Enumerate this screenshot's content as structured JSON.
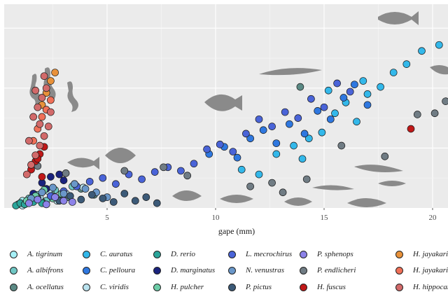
{
  "chart_data": {
    "type": "scatter",
    "title": "",
    "xlabel": "gape (mm)",
    "ylabel": "",
    "xlim": [
      0,
      21
    ],
    "ylim": [
      0,
      17
    ],
    "x_ticks": [
      5,
      10,
      15,
      20
    ],
    "grid": true,
    "background": "#ebebeb",
    "legend_position": "bottom",
    "series": [
      {
        "name": "A. tigrinum",
        "color": "#a6f0f7",
        "x": [
          0.9,
          1.1,
          1.3,
          1.6,
          2.1,
          2.5,
          2.9
        ],
        "y": [
          0.3,
          0.6,
          0.4,
          0.9,
          0.5,
          1.2,
          0.7
        ]
      },
      {
        "name": "A. albifrons",
        "color": "#6fc7c4",
        "x": [
          1.0,
          1.4,
          1.8,
          2.2,
          2.6,
          3.0,
          3.4
        ],
        "y": [
          0.4,
          0.8,
          1.1,
          0.6,
          1.5,
          1.0,
          1.8
        ]
      },
      {
        "name": "A. ocellatus",
        "color": "#5b8a85",
        "x": [
          1.2,
          1.6,
          2.0,
          2.4,
          3.2,
          3.8,
          4.4,
          13.9
        ],
        "y": [
          0.3,
          0.7,
          0.5,
          1.3,
          0.9,
          1.6,
          1.1,
          10.1
        ]
      },
      {
        "name": "C. auratus",
        "color": "#33b8ea",
        "x": [
          11.2,
          12.0,
          12.8,
          13.6,
          14.3,
          14.9,
          15.5,
          16.0,
          16.5,
          17.0,
          17.6,
          18.2,
          18.8,
          19.5,
          20.3,
          14.0,
          15.2,
          16.8
        ],
        "y": [
          3.2,
          2.8,
          4.5,
          5.2,
          5.8,
          6.3,
          7.9,
          8.8,
          7.2,
          9.5,
          10.1,
          11.3,
          12.0,
          13.1,
          13.6,
          4.1,
          9.8,
          10.6
        ]
      },
      {
        "name": "C. pelloura",
        "color": "#2f78e0",
        "x": [
          9.7,
          10.4,
          11.0,
          11.6,
          12.2,
          12.8,
          13.4,
          14.1,
          14.7,
          15.3,
          15.9,
          16.4,
          17.0
        ],
        "y": [
          4.5,
          5.1,
          4.2,
          5.8,
          6.5,
          5.4,
          7.0,
          6.2,
          8.1,
          7.4,
          9.2,
          10.3,
          8.6
        ]
      },
      {
        "name": "C. viridis",
        "color": "#b9e2ee",
        "x": [
          1.1,
          1.5,
          1.9,
          2.3,
          2.7,
          3.1,
          3.5,
          3.9
        ],
        "y": [
          0.2,
          0.5,
          0.9,
          1.4,
          0.6,
          1.2,
          2.0,
          1.7
        ]
      },
      {
        "name": "D. rerio",
        "color": "#2aa59a",
        "x": [
          0.8,
          1.0,
          1.2,
          1.4,
          1.6,
          1.8,
          2.0
        ],
        "y": [
          0.2,
          0.4,
          0.3,
          0.6,
          0.5,
          0.8,
          0.4
        ]
      },
      {
        "name": "D. marginatus",
        "color": "#1a237e",
        "x": [
          1.6,
          2.0,
          2.4,
          2.8,
          3.0,
          2.2
        ],
        "y": [
          1.2,
          2.1,
          2.6,
          2.8,
          2.3,
          1.6
        ]
      },
      {
        "name": "H. pulcher",
        "color": "#6dcda8",
        "x": [
          1.3,
          1.7,
          2.1,
          2.5,
          2.9
        ],
        "y": [
          0.6,
          1.0,
          1.5,
          0.8,
          1.2
        ]
      },
      {
        "name": "L. mecrochirus",
        "color": "#4a64d8",
        "x": [
          2.4,
          3.0,
          3.6,
          4.2,
          4.8,
          5.4,
          6.0,
          6.6,
          7.2,
          7.8,
          8.4,
          9.0,
          9.6,
          10.2,
          10.8,
          11.4,
          12.0,
          12.6,
          13.2,
          13.8,
          14.4,
          15.0,
          15.6,
          16.2
        ],
        "y": [
          1.0,
          1.4,
          1.8,
          2.2,
          2.5,
          2.0,
          2.8,
          2.4,
          3.0,
          3.4,
          3.1,
          3.7,
          4.9,
          5.3,
          4.7,
          6.2,
          7.4,
          6.8,
          8.0,
          7.5,
          9.1,
          8.4,
          10.4,
          9.7
        ]
      },
      {
        "name": "N. venustras",
        "color": "#6a97c9",
        "x": [
          1.5,
          2.0,
          2.5,
          3.0,
          3.5,
          4.0,
          4.5,
          5.0
        ],
        "y": [
          0.8,
          1.3,
          1.7,
          1.2,
          2.0,
          1.6,
          1.3,
          0.9
        ]
      },
      {
        "name": "P. pictus",
        "color": "#3c5a78",
        "x": [
          2.8,
          3.3,
          3.8,
          4.3,
          4.8,
          5.3,
          5.8,
          6.3,
          6.8,
          7.3
        ],
        "y": [
          0.6,
          1.0,
          0.7,
          1.1,
          0.8,
          0.5,
          1.2,
          0.6,
          0.9,
          0.4
        ]
      },
      {
        "name": "P. sphenops",
        "color": "#8c82e8",
        "x": [
          1.4,
          1.8,
          2.2,
          2.6,
          3.0,
          3.4
        ],
        "y": [
          0.4,
          0.7,
          0.3,
          0.9,
          0.6,
          0.5
        ]
      },
      {
        "name": "P. endlicheri",
        "color": "#707c84",
        "x": [
          1.8,
          3.1,
          5.8,
          7.6,
          8.7,
          11.6,
          12.6,
          13.1,
          14.2,
          15.8,
          17.8,
          19.3,
          20.1,
          20.6
        ],
        "y": [
          3.5,
          2.9,
          3.1,
          3.4,
          2.7,
          1.8,
          2.1,
          1.3,
          2.4,
          5.2,
          4.3,
          7.8,
          7.9,
          8.9
        ]
      },
      {
        "name": "H. jayakari",
        "color": "#c01818",
        "x": [
          1.5,
          1.7,
          1.9,
          2.1,
          1.8,
          2.0,
          19.0
        ],
        "y": [
          3.2,
          3.9,
          4.5,
          5.1,
          4.1,
          2.6,
          6.6
        ]
      },
      {
        "name": "H. jayakari",
        "color": "#e8913a",
        "x": [
          2.0,
          2.2,
          2.4,
          2.6
        ],
        "y": [
          8.6,
          9.6,
          10.6,
          11.3
        ]
      },
      {
        "name": "H. fuscus",
        "color": "#f07058",
        "x": [
          1.6,
          1.8,
          2.0,
          2.2,
          2.4
        ],
        "y": [
          5.6,
          6.6,
          7.6,
          8.2,
          9.0
        ]
      },
      {
        "name": "H. hippocampus",
        "color": "#d26a6a",
        "x": [
          1.3,
          1.5,
          1.7,
          1.9,
          2.1,
          2.3,
          1.6,
          1.8,
          2.0,
          2.2,
          1.4,
          1.9,
          2.4,
          2.1,
          1.7
        ],
        "y": [
          2.8,
          3.6,
          4.4,
          5.2,
          6.0,
          6.8,
          7.6,
          8.4,
          9.2,
          10.0,
          5.6,
          7.0,
          8.0,
          11.0,
          9.8
        ]
      }
    ],
    "legend_labels": [
      "A. tigrinum",
      "A. albifrons",
      "A. ocellatus",
      "C. auratus",
      "C. pelloura",
      "C. viridis",
      "D. rerio",
      "D. marginatus",
      "H. pulcher",
      "L. mecrochirus",
      "N. venustras",
      "P. pictus",
      "P. sphenops",
      "P. endlicheri",
      "H. fuscus",
      "H. jayakari",
      "H. jayakari",
      "H. hippocampus"
    ]
  }
}
